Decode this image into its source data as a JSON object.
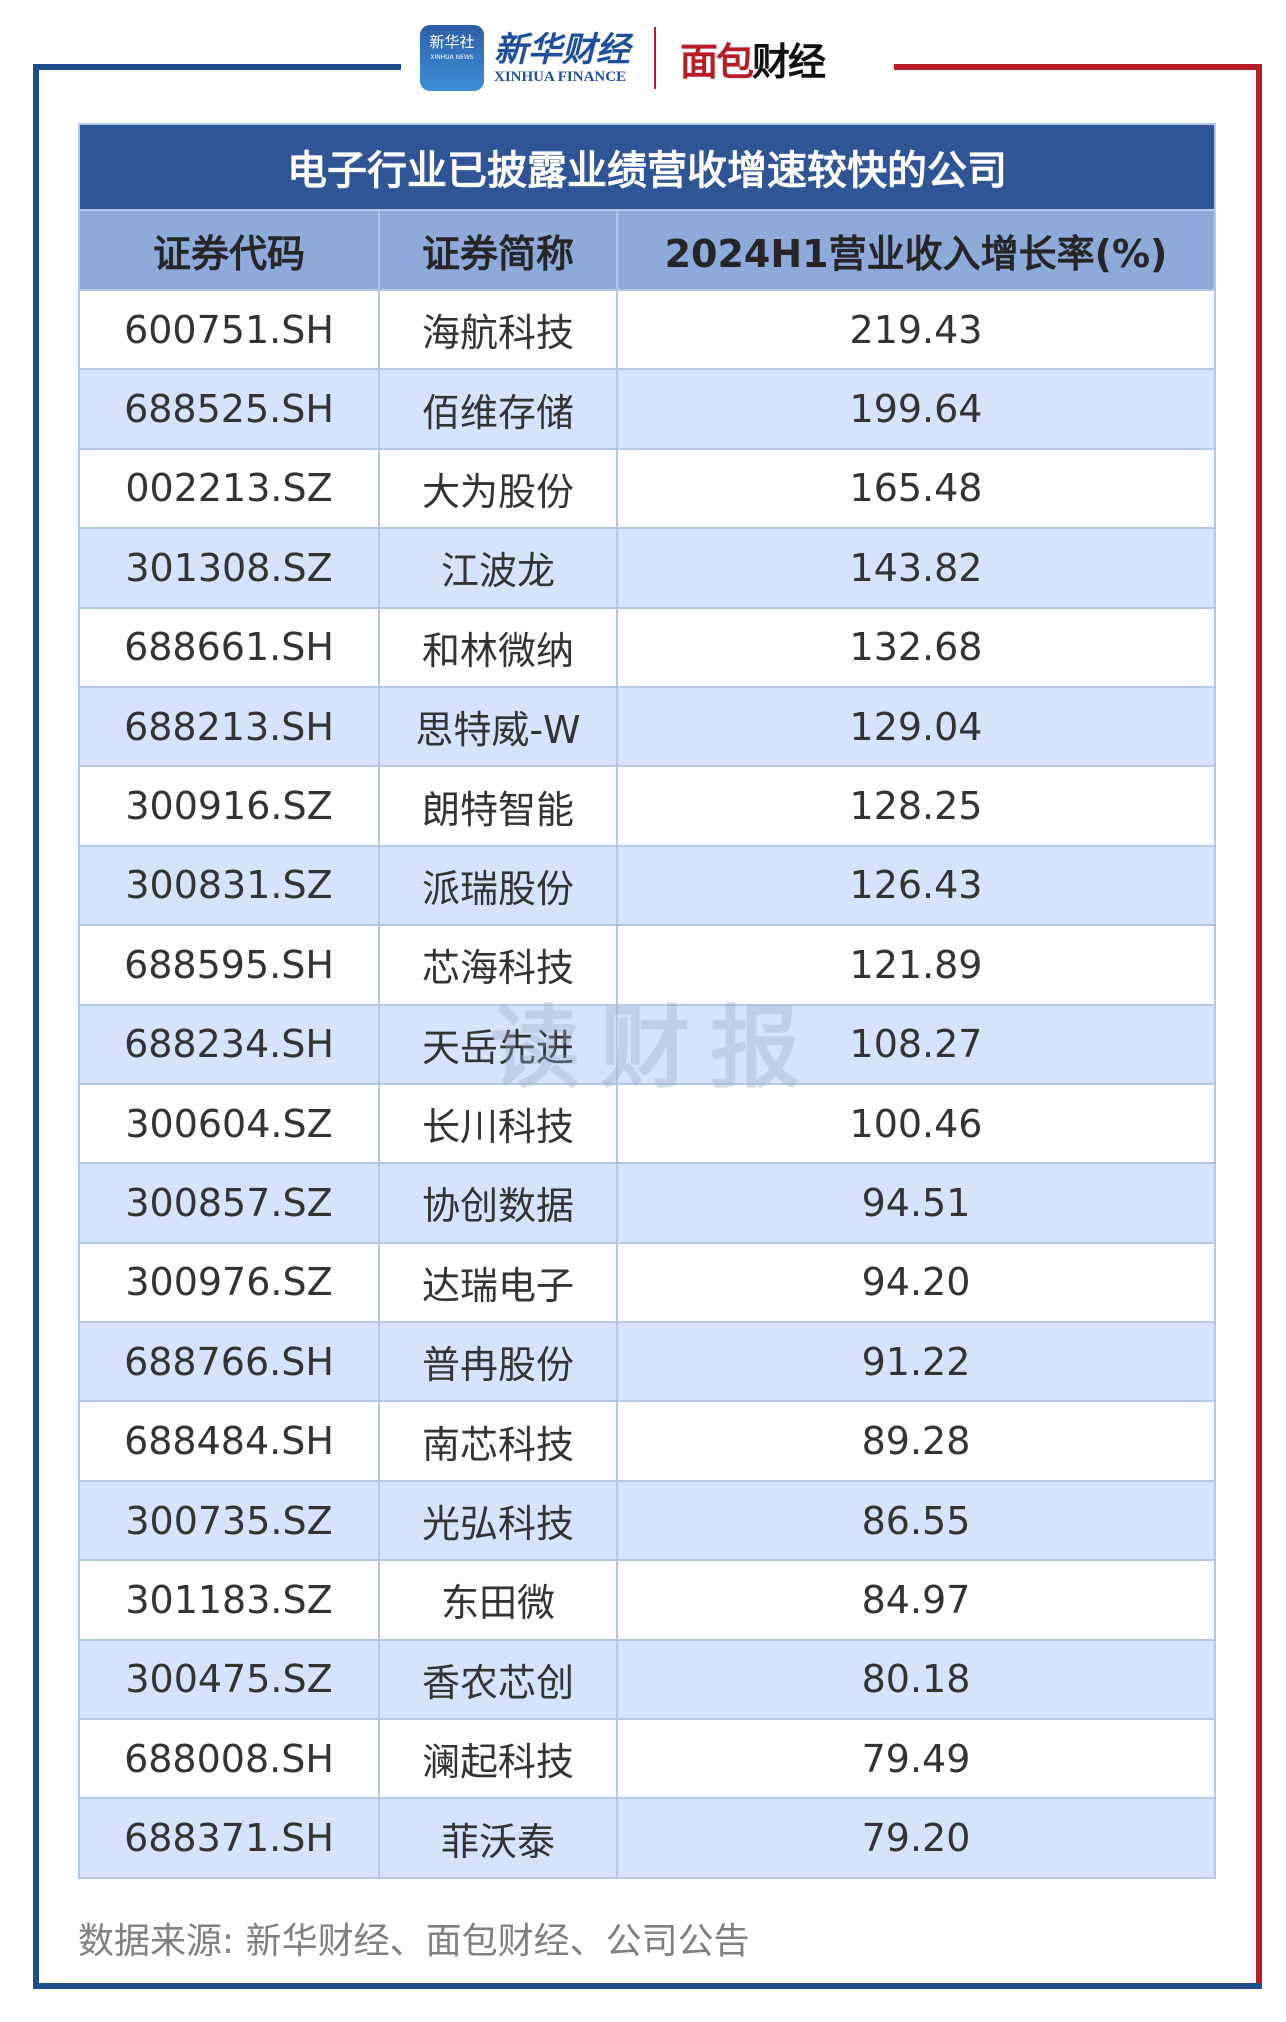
{
  "logos": {
    "xinhua_badge": "新华社",
    "xinhua_badge_sub": "XINHUA NEWS",
    "xinhua_finance_cn": "新华财经",
    "xinhua_finance_en": "XINHUA FINANCE",
    "mianbao_a": "面包",
    "mianbao_b": "财经"
  },
  "table": {
    "title": "电子行业已披露业绩营收增速较快的公司",
    "headers": [
      "证券代码",
      "证券简称",
      "2024H1营业收入增长率(%)"
    ],
    "rows": [
      [
        "600751.SH",
        "海航科技",
        "219.43"
      ],
      [
        "688525.SH",
        "佰维存储",
        "199.64"
      ],
      [
        "002213.SZ",
        "大为股份",
        "165.48"
      ],
      [
        "301308.SZ",
        "江波龙",
        "143.82"
      ],
      [
        "688661.SH",
        "和林微纳",
        "132.68"
      ],
      [
        "688213.SH",
        "思特威-W",
        "129.04"
      ],
      [
        "300916.SZ",
        "朗特智能",
        "128.25"
      ],
      [
        "300831.SZ",
        "派瑞股份",
        "126.43"
      ],
      [
        "688595.SH",
        "芯海科技",
        "121.89"
      ],
      [
        "688234.SH",
        "天岳先进",
        "108.27"
      ],
      [
        "300604.SZ",
        "长川科技",
        "100.46"
      ],
      [
        "300857.SZ",
        "协创数据",
        "94.51"
      ],
      [
        "300976.SZ",
        "达瑞电子",
        "94.20"
      ],
      [
        "688766.SH",
        "普冉股份",
        "91.22"
      ],
      [
        "688484.SH",
        "南芯科技",
        "89.28"
      ],
      [
        "300735.SZ",
        "光弘科技",
        "86.55"
      ],
      [
        "301183.SZ",
        "东田微",
        "84.97"
      ],
      [
        "300475.SZ",
        "香农芯创",
        "80.18"
      ],
      [
        "688008.SH",
        "澜起科技",
        "79.49"
      ],
      [
        "688371.SH",
        "菲沃泰",
        "79.20"
      ]
    ]
  },
  "watermark": "读财报",
  "source": "数据来源: 新华财经、面包财经、公司公告",
  "colors": {
    "title_bg": "#2f5597",
    "header_bg": "#8eaadb",
    "stripe": "#d6e3fc",
    "frame_blue": "#1f4e8c",
    "frame_red": "#b81c25"
  }
}
